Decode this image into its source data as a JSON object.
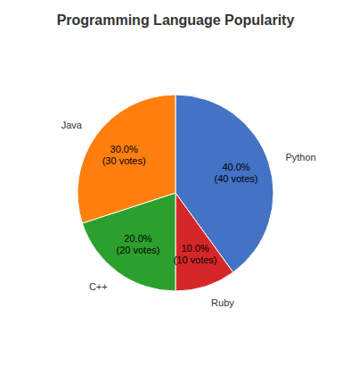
{
  "chart_data": {
    "type": "pie",
    "title": "Programming Language Popularity",
    "categories": [
      "Python",
      "Ruby",
      "C++",
      "Java"
    ],
    "values": [
      40.0,
      10.0,
      20.0,
      30.0
    ],
    "value_labels": [
      "40.0%\n(40 votes)",
      "10.0%\n(10 votes)",
      "20.0%\n(20 votes)",
      "30.0%\n(30 votes)"
    ],
    "colors": [
      "#4472c4",
      "#d62728",
      "#2ca02c",
      "#ff7f0e"
    ],
    "data_labels": true
  }
}
